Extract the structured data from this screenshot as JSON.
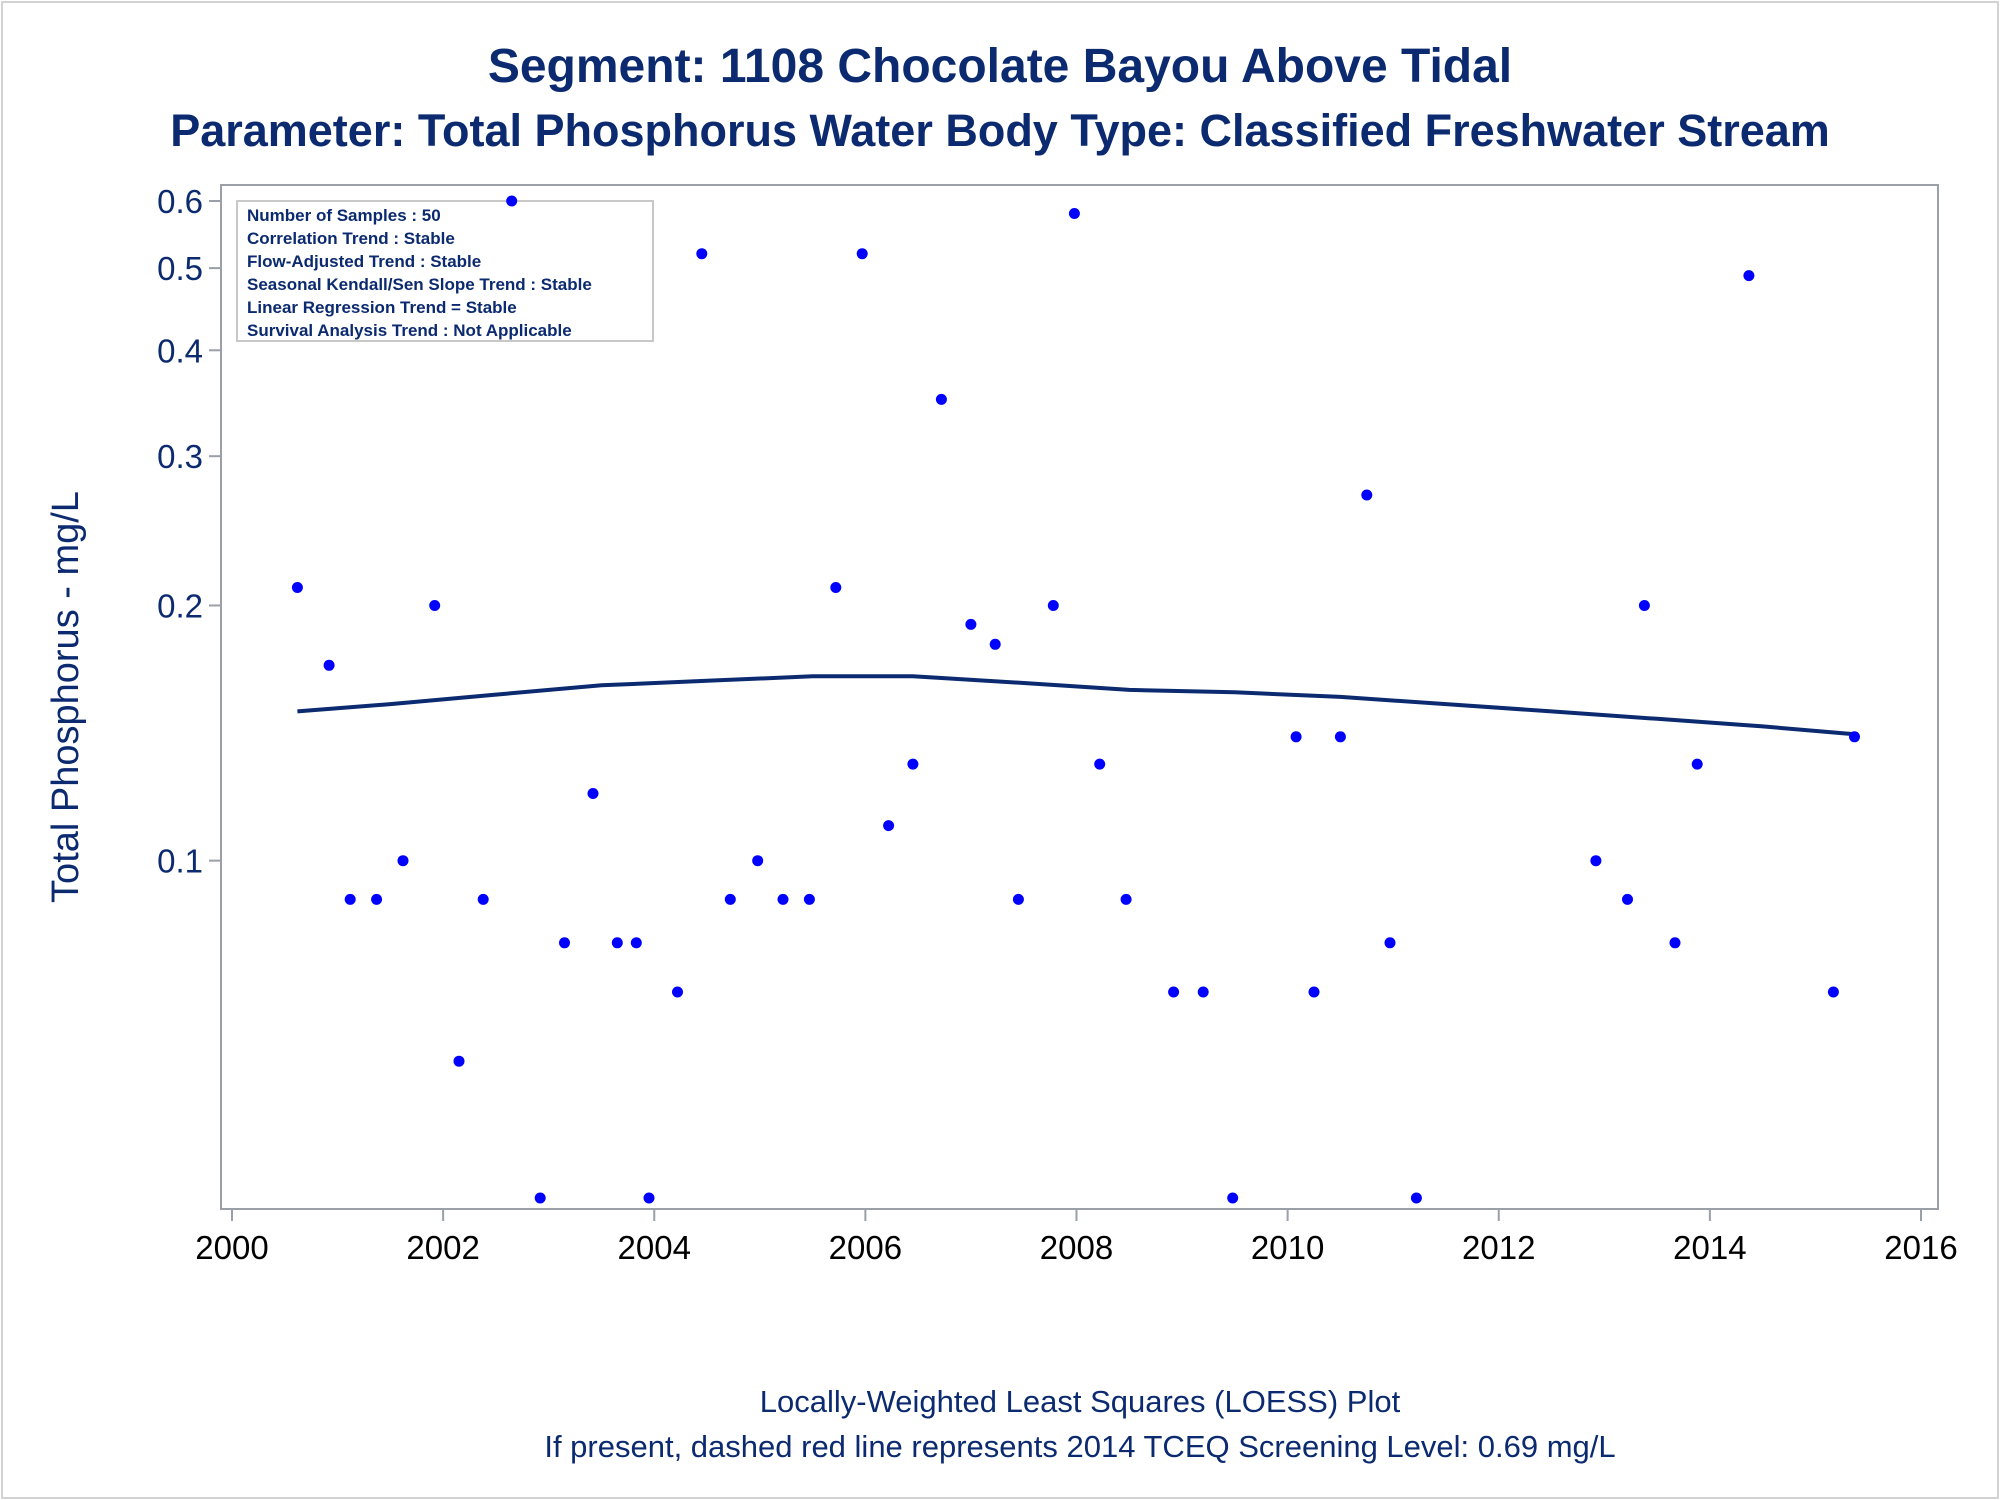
{
  "title": "Segment: 1108  Chocolate Bayou Above Tidal",
  "subtitle": "Parameter: Total Phosphorus   Water Body Type: Classified Freshwater Stream",
  "info_box": [
    "Number of Samples : 50",
    "Correlation Trend : Stable",
    "Flow-Adjusted Trend : Stable",
    "Seasonal Kendall/Sen Slope Trend : Stable",
    "Linear Regression Trend = Stable",
    "Survival Analysis Trend : Not Applicable"
  ],
  "footnotes": [
    "Locally-Weighted Least Squares (LOESS) Plot",
    "If present, dashed red line represents 2014 TCEQ Screening Level: 0.69 mg/L"
  ],
  "colors": {
    "points": "#0000ff",
    "loess": "#0b2a6f",
    "text": "#0b2a6f",
    "axis": "#9a9fa8"
  },
  "chart_data": {
    "type": "scatter",
    "xlabel": "",
    "ylabel": "Total Phosphorus - mg/L",
    "y_scale": "log",
    "xlim": [
      2000,
      2016
    ],
    "ylim": [
      0.04,
      0.62
    ],
    "x_ticks": [
      2000,
      2002,
      2004,
      2006,
      2008,
      2010,
      2012,
      2014,
      2016
    ],
    "y_ticks": [
      0.1,
      0.2,
      0.3,
      0.4,
      0.5,
      0.6
    ],
    "y_tick_labels": [
      "0.1",
      "0.2",
      "0.3",
      "0.4",
      "0.5",
      "0.6"
    ],
    "x_tick_labels": [
      "2000",
      "2002",
      "2004",
      "2006",
      "2008",
      "2010",
      "2012",
      "2014",
      "2016"
    ],
    "grid": false,
    "series": [
      {
        "kind": "points",
        "points": [
          [
            2000.62,
            0.21
          ],
          [
            2000.92,
            0.17
          ],
          [
            2001.12,
            0.09
          ],
          [
            2001.37,
            0.09
          ],
          [
            2001.62,
            0.1
          ],
          [
            2001.92,
            0.2
          ],
          [
            2002.15,
            0.058
          ],
          [
            2002.38,
            0.09
          ],
          [
            2002.65,
            0.6
          ],
          [
            2002.92,
            0.04
          ],
          [
            2003.15,
            0.08
          ],
          [
            2003.42,
            0.12
          ],
          [
            2003.65,
            0.08
          ],
          [
            2003.83,
            0.08
          ],
          [
            2003.95,
            0.04
          ],
          [
            2004.22,
            0.07
          ],
          [
            2004.45,
            0.52
          ],
          [
            2004.72,
            0.09
          ],
          [
            2004.98,
            0.1
          ],
          [
            2005.22,
            0.09
          ],
          [
            2005.47,
            0.09
          ],
          [
            2005.72,
            0.21
          ],
          [
            2005.97,
            0.52
          ],
          [
            2006.22,
            0.11
          ],
          [
            2006.45,
            0.13
          ],
          [
            2006.72,
            0.35
          ],
          [
            2007.0,
            0.19
          ],
          [
            2007.23,
            0.18
          ],
          [
            2007.45,
            0.09
          ],
          [
            2007.78,
            0.2
          ],
          [
            2007.98,
            0.58
          ],
          [
            2008.22,
            0.13
          ],
          [
            2008.47,
            0.09
          ],
          [
            2008.92,
            0.07
          ],
          [
            2009.2,
            0.07
          ],
          [
            2009.48,
            0.04
          ],
          [
            2010.08,
            0.14
          ],
          [
            2010.25,
            0.07
          ],
          [
            2010.5,
            0.14
          ],
          [
            2010.75,
            0.27
          ],
          [
            2010.97,
            0.08
          ],
          [
            2011.22,
            0.04
          ],
          [
            2012.92,
            0.1
          ],
          [
            2013.22,
            0.09
          ],
          [
            2013.38,
            0.2
          ],
          [
            2013.67,
            0.08
          ],
          [
            2013.88,
            0.13
          ],
          [
            2014.37,
            0.49
          ],
          [
            2015.17,
            0.07
          ],
          [
            2015.37,
            0.14
          ]
        ]
      },
      {
        "kind": "loess",
        "points": [
          [
            2000.62,
            0.15
          ],
          [
            2001.5,
            0.153
          ],
          [
            2002.5,
            0.157
          ],
          [
            2003.5,
            0.161
          ],
          [
            2004.5,
            0.163
          ],
          [
            2005.5,
            0.165
          ],
          [
            2006.45,
            0.165
          ],
          [
            2007.5,
            0.162
          ],
          [
            2008.5,
            0.159
          ],
          [
            2009.5,
            0.158
          ],
          [
            2010.5,
            0.156
          ],
          [
            2011.5,
            0.153
          ],
          [
            2012.5,
            0.15
          ],
          [
            2013.5,
            0.147
          ],
          [
            2014.5,
            0.144
          ],
          [
            2015.37,
            0.141
          ]
        ]
      }
    ]
  }
}
